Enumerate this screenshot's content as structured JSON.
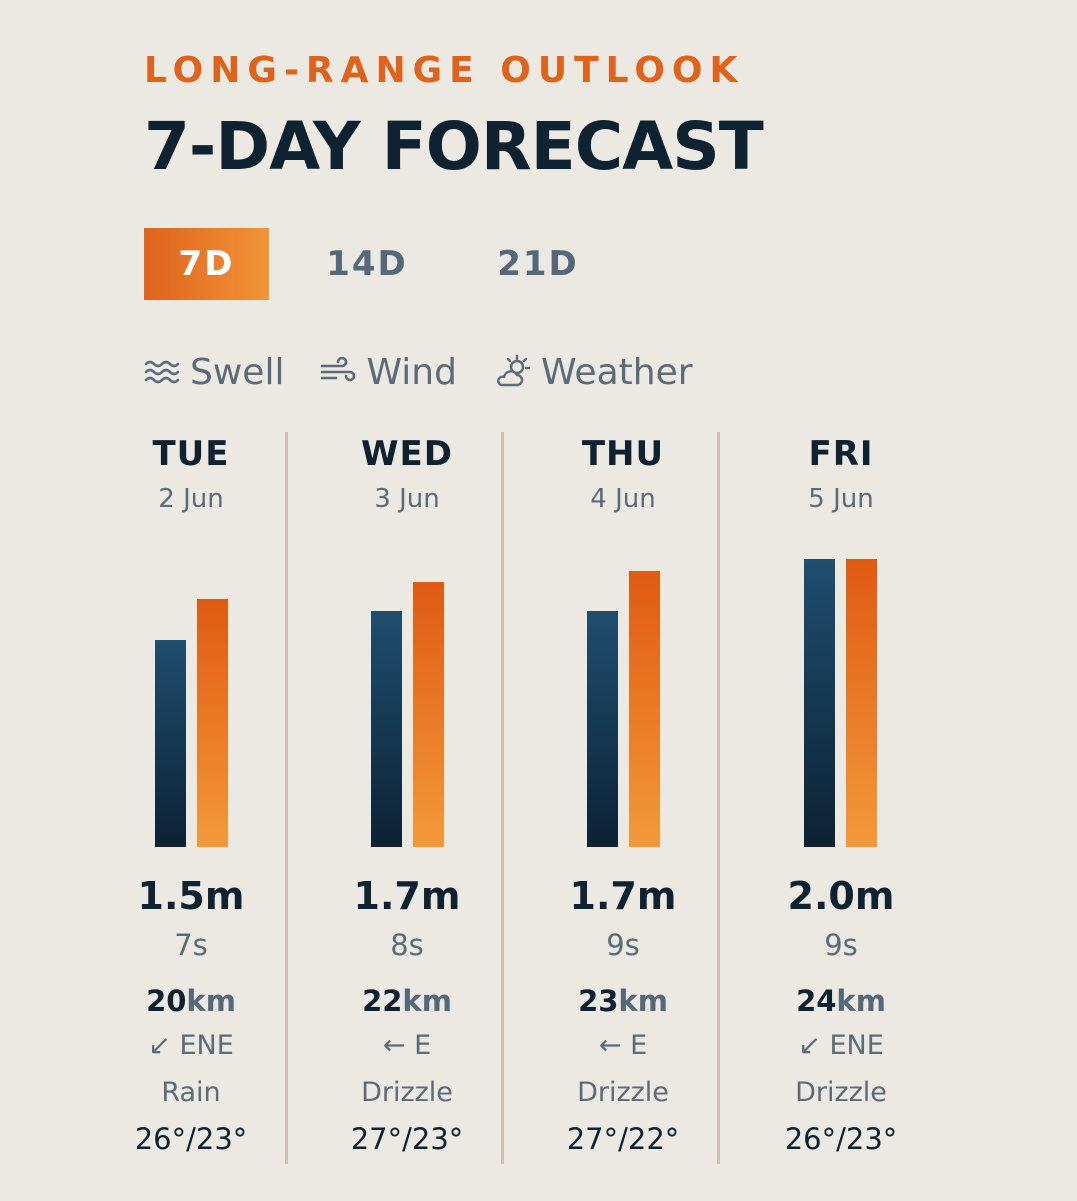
{
  "header": {
    "eyebrow": "LONG-RANGE OUTLOOK",
    "title": "7-DAY FORECAST"
  },
  "tabs": [
    {
      "label": "7D",
      "active": true
    },
    {
      "label": "14D",
      "active": false
    },
    {
      "label": "21D",
      "active": false
    }
  ],
  "legend": [
    {
      "label": "Swell",
      "icon": "waves-icon"
    },
    {
      "label": "Wind",
      "icon": "wind-icon"
    },
    {
      "label": "Weather",
      "icon": "sun-cloud-icon"
    }
  ],
  "colors": {
    "accent": "#e0621b",
    "swell_bar": "#1f4e6e",
    "wind_bar": "#f19538",
    "background": "#ece9e2",
    "text_dark": "#0e2232",
    "text_muted": "#5b6b78"
  },
  "days": [
    {
      "dow": "TUE",
      "date": "2 Jun",
      "height": "1.5m",
      "period": "7s",
      "wind_speed": "20",
      "wind_unit": "km",
      "direction": "↙ ENE",
      "condition": "Rain",
      "temps": "26°/23°",
      "swell_level": 0.72,
      "wind_level": 0.86
    },
    {
      "dow": "WED",
      "date": "3 Jun",
      "height": "1.7m",
      "period": "8s",
      "wind_speed": "22",
      "wind_unit": "km",
      "direction": "← E",
      "condition": "Drizzle",
      "temps": "27°/23°",
      "swell_level": 0.82,
      "wind_level": 0.92
    },
    {
      "dow": "THU",
      "date": "4 Jun",
      "height": "1.7m",
      "period": "9s",
      "wind_speed": "23",
      "wind_unit": "km",
      "direction": "← E",
      "condition": "Drizzle",
      "temps": "27°/22°",
      "swell_level": 0.82,
      "wind_level": 0.96
    },
    {
      "dow": "FRI",
      "date": "5 Jun",
      "height": "2.0m",
      "period": "9s",
      "wind_speed": "24",
      "wind_unit": "km",
      "direction": "↙ ENE",
      "condition": "Drizzle",
      "temps": "26°/23°",
      "swell_level": 1.0,
      "wind_level": 1.0
    }
  ]
}
